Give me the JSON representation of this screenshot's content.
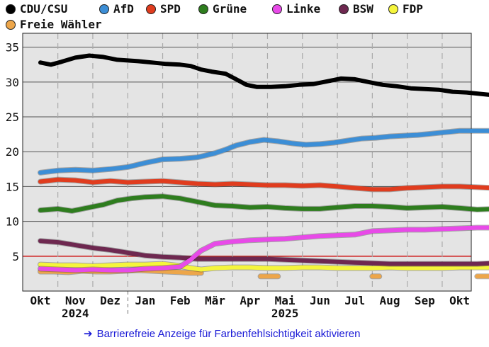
{
  "chart_data": {
    "type": "line",
    "title": "",
    "xlabel": "",
    "ylabel": "",
    "ylim": [
      0,
      37
    ],
    "yticks": [
      5,
      10,
      15,
      20,
      25,
      30,
      35
    ],
    "threshold": {
      "value": 5,
      "color": "#cc0000"
    },
    "x_range_months": [
      0,
      13.6
    ],
    "months": [
      "Okt",
      "Nov",
      "Dez",
      "Jan",
      "Feb",
      "Mär",
      "Apr",
      "Mai",
      "Jun",
      "Jul",
      "Aug",
      "Sep",
      "Okt"
    ],
    "year_labels": [
      {
        "label": "2024",
        "at_month": 1
      },
      {
        "label": "2025",
        "at_month": 7
      }
    ],
    "year_divider_month": 2.5,
    "legend_placement": "top",
    "series": [
      {
        "name": "CDU/CSU",
        "color": "#000000",
        "x": [
          0,
          0.3,
          0.6,
          1.0,
          1.4,
          1.8,
          2.2,
          2.5,
          2.8,
          3.2,
          3.6,
          4.0,
          4.3,
          4.6,
          4.9,
          5.3,
          5.6,
          5.9,
          6.2,
          6.6,
          7.0,
          7.4,
          7.8,
          8.2,
          8.6,
          9.0,
          9.4,
          9.8,
          10.2,
          10.6,
          11.0,
          11.4,
          11.8,
          12.2,
          12.6,
          13.0,
          13.4
        ],
        "values": [
          32.8,
          32.5,
          32.9,
          33.5,
          33.8,
          33.6,
          33.2,
          33.1,
          33.0,
          32.8,
          32.6,
          32.5,
          32.3,
          31.8,
          31.5,
          31.2,
          30.4,
          29.6,
          29.3,
          29.3,
          29.4,
          29.6,
          29.7,
          30.1,
          30.5,
          30.4,
          30.0,
          29.6,
          29.4,
          29.1,
          29.0,
          28.9,
          28.6,
          28.5,
          28.3,
          28.1,
          28.2
        ]
      },
      {
        "name": "AfD",
        "color": "#3c8ed6",
        "x": [
          0,
          0.5,
          1.0,
          1.5,
          2.0,
          2.5,
          3.0,
          3.5,
          4.0,
          4.5,
          5.0,
          5.3,
          5.6,
          6.0,
          6.4,
          6.8,
          7.2,
          7.6,
          8.0,
          8.4,
          8.8,
          9.2,
          9.6,
          10.0,
          10.4,
          10.8,
          11.2,
          11.6,
          12.0,
          12.4,
          12.8,
          13.4
        ],
        "values": [
          17.0,
          17.3,
          17.4,
          17.3,
          17.5,
          17.8,
          18.4,
          18.9,
          19.0,
          19.2,
          19.8,
          20.3,
          20.9,
          21.4,
          21.7,
          21.5,
          21.2,
          21.0,
          21.1,
          21.3,
          21.6,
          21.9,
          22.0,
          22.2,
          22.3,
          22.4,
          22.6,
          22.8,
          23.0,
          23.0,
          23.0,
          23.0
        ]
      },
      {
        "name": "SPD",
        "color": "#e03c1e",
        "x": [
          0,
          0.5,
          1.0,
          1.5,
          2.0,
          2.5,
          3.0,
          3.5,
          4.0,
          4.5,
          5.0,
          5.5,
          6.0,
          6.5,
          7.0,
          7.5,
          8.0,
          8.5,
          9.0,
          9.5,
          10.0,
          10.5,
          11.0,
          11.5,
          12.0,
          12.5,
          13.0,
          13.4
        ],
        "values": [
          15.7,
          16.0,
          15.9,
          15.6,
          15.8,
          15.6,
          15.7,
          15.8,
          15.6,
          15.4,
          15.3,
          15.4,
          15.3,
          15.2,
          15.2,
          15.1,
          15.2,
          15.0,
          14.8,
          14.6,
          14.6,
          14.8,
          14.9,
          15.0,
          15.0,
          14.9,
          14.8,
          14.8
        ]
      },
      {
        "name": "Grüne",
        "color": "#2e7d1e",
        "x": [
          0,
          0.5,
          0.9,
          1.3,
          1.8,
          2.2,
          2.6,
          3.0,
          3.5,
          4.0,
          4.5,
          5.0,
          5.5,
          6.0,
          6.5,
          7.0,
          7.5,
          8.0,
          8.5,
          9.0,
          9.5,
          10.0,
          10.5,
          11.0,
          11.5,
          12.0,
          12.5,
          13.0,
          13.4
        ],
        "values": [
          11.6,
          11.8,
          11.5,
          11.9,
          12.4,
          13.0,
          13.3,
          13.5,
          13.6,
          13.3,
          12.8,
          12.3,
          12.2,
          12.0,
          12.1,
          11.9,
          11.8,
          11.8,
          12.0,
          12.2,
          12.2,
          12.1,
          11.9,
          12.0,
          12.1,
          11.9,
          11.7,
          11.8,
          11.7
        ]
      },
      {
        "name": "Linke",
        "color": "#e84ae8",
        "x": [
          0,
          0.5,
          1.0,
          1.5,
          2.0,
          2.5,
          3.0,
          3.5,
          4.0,
          4.3,
          4.6,
          5.0,
          5.5,
          6.0,
          6.5,
          7.0,
          7.5,
          8.0,
          8.5,
          9.0,
          9.5,
          10.0,
          10.5,
          11.0,
          11.5,
          12.0,
          12.5,
          13.0,
          13.4
        ],
        "values": [
          3.2,
          3.1,
          3.0,
          3.1,
          3.0,
          3.0,
          3.2,
          3.3,
          3.5,
          4.5,
          5.8,
          6.8,
          7.1,
          7.3,
          7.4,
          7.5,
          7.7,
          7.9,
          8.0,
          8.1,
          8.6,
          8.7,
          8.8,
          8.8,
          8.9,
          9.0,
          9.1,
          9.1,
          9.0
        ]
      },
      {
        "name": "BSW",
        "color": "#6e2850",
        "x": [
          0,
          0.5,
          1.0,
          1.5,
          2.0,
          2.5,
          3.0,
          3.5,
          4.0,
          4.5,
          5.0,
          5.5,
          6.0,
          6.5,
          7.0,
          7.5,
          8.0,
          8.5,
          9.0,
          9.5,
          10.0,
          10.5,
          11.0,
          11.5,
          12.0,
          12.5,
          13.0,
          13.4
        ],
        "values": [
          7.2,
          7.0,
          6.6,
          6.2,
          5.9,
          5.5,
          5.1,
          4.9,
          4.8,
          4.6,
          4.6,
          4.6,
          4.6,
          4.6,
          4.5,
          4.4,
          4.3,
          4.2,
          4.1,
          4.0,
          3.9,
          3.9,
          3.9,
          3.9,
          3.9,
          3.9,
          4.0,
          4.1
        ]
      },
      {
        "name": "FDP",
        "color": "#f5f53c",
        "x": [
          0,
          0.5,
          1.0,
          1.5,
          2.0,
          2.5,
          3.0,
          3.5,
          4.0,
          4.3,
          4.6,
          5.0,
          5.5,
          6.0,
          6.5,
          7.0,
          7.5,
          8.0,
          8.5,
          9.0,
          9.5,
          10.0,
          10.5,
          11.0,
          11.5,
          12.0,
          12.5,
          13.0,
          13.4
        ],
        "values": [
          3.8,
          3.7,
          3.7,
          3.6,
          3.7,
          3.8,
          3.8,
          3.9,
          3.6,
          3.3,
          3.1,
          3.3,
          3.4,
          3.4,
          3.3,
          3.3,
          3.4,
          3.4,
          3.3,
          3.3,
          3.3,
          3.4,
          3.3,
          3.3,
          3.3,
          3.4,
          3.4,
          3.4,
          3.5
        ]
      },
      {
        "name": "Freie Wähler",
        "color": "#eda64a",
        "segments": [
          {
            "x": [
              0,
              0.4,
              0.8,
              1.2,
              1.6,
              2.0,
              2.4,
              2.8,
              3.2,
              3.6,
              4.0,
              4.3,
              4.6
            ],
            "values": [
              2.8,
              2.8,
              2.7,
              2.9,
              2.8,
              2.8,
              2.9,
              3.0,
              2.9,
              2.8,
              2.7,
              2.6,
              2.6
            ]
          },
          {
            "x": [
              6.3,
              6.5,
              6.8
            ],
            "values": [
              2.1,
              2.1,
              2.1
            ]
          },
          {
            "x": [
              9.5,
              9.7
            ],
            "values": [
              2.1,
              2.1
            ]
          },
          {
            "x": [
              12.5,
              12.7,
              13.0
            ],
            "values": [
              2.1,
              2.1,
              2.1
            ]
          }
        ]
      }
    ]
  },
  "a11y_link": {
    "arrow": "➔",
    "text": "Barrierefreie Anzeige für Farbenfehlsichtigkeit aktivieren"
  }
}
